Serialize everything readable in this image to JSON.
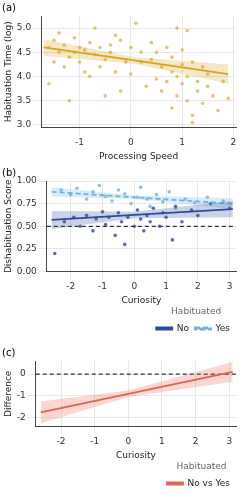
{
  "chart_data": [
    {
      "type": "scatter",
      "title": "(a)",
      "x_label": "Processing Speed",
      "y_label": "Habituation Time (log)",
      "xlim": [
        -1.75,
        2.05
      ],
      "xticks": [
        -1,
        0,
        1,
        2
      ],
      "ylim": [
        2.95,
        5.25
      ],
      "yticks": [
        {
          "value": 3,
          "label": "3.0"
        },
        {
          "value": 3.5,
          "label": "3.5"
        },
        {
          "value": 4,
          "label": "4.0"
        },
        {
          "value": 4.5,
          "label": "4.5"
        },
        {
          "value": 5,
          "label": "5.0"
        }
      ],
      "grid": true,
      "color": "#E8B04A",
      "marker": "circle",
      "points": [
        [
          -1.6,
          4.6
        ],
        [
          -1.5,
          4.3
        ],
        [
          -1.5,
          4.75
        ],
        [
          -1.4,
          4.5
        ],
        [
          -1.4,
          4.9
        ],
        [
          -1.3,
          4.2
        ],
        [
          -1.3,
          4.65
        ],
        [
          -1.2,
          4.4
        ],
        [
          -1.2,
          3.5
        ],
        [
          -1.1,
          4.8
        ],
        [
          -1.1,
          4.5
        ],
        [
          -1.0,
          4.6
        ],
        [
          -1.0,
          4.3
        ],
        [
          -0.9,
          4.55
        ],
        [
          -0.9,
          4.1
        ],
        [
          -0.8,
          4.0
        ],
        [
          -0.8,
          4.7
        ],
        [
          -0.7,
          4.45
        ],
        [
          -0.7,
          5.0
        ],
        [
          -0.6,
          4.2
        ],
        [
          -0.6,
          4.6
        ],
        [
          -0.5,
          4.35
        ],
        [
          -0.5,
          3.6
        ],
        [
          -0.4,
          4.5
        ],
        [
          -0.4,
          4.65
        ],
        [
          -0.3,
          4.1
        ],
        [
          -0.2,
          4.75
        ],
        [
          -0.2,
          3.7
        ],
        [
          -0.1,
          4.3
        ],
        [
          0.0,
          4.05
        ],
        [
          0.0,
          4.6
        ],
        [
          0.1,
          5.1
        ],
        [
          0.2,
          4.5
        ],
        [
          0.2,
          4.3
        ],
        [
          0.3,
          3.8
        ],
        [
          0.4,
          4.35
        ],
        [
          0.4,
          4.7
        ],
        [
          0.5,
          3.95
        ],
        [
          0.5,
          4.5
        ],
        [
          0.6,
          3.7
        ],
        [
          0.6,
          4.2
        ],
        [
          0.7,
          4.6
        ],
        [
          0.7,
          3.9
        ],
        [
          0.8,
          4.1
        ],
        [
          0.8,
          3.35
        ],
        [
          0.8,
          4.4
        ],
        [
          0.9,
          4.0
        ],
        [
          0.9,
          3.6
        ],
        [
          1.0,
          4.25
        ],
        [
          1.0,
          3.85
        ],
        [
          1.0,
          4.55
        ],
        [
          1.1,
          3.5
        ],
        [
          1.1,
          4.0
        ],
        [
          1.2,
          4.3
        ],
        [
          1.2,
          3.2
        ],
        [
          1.3,
          3.9
        ],
        [
          1.3,
          3.7
        ],
        [
          1.4,
          4.2
        ],
        [
          1.4,
          3.45
        ],
        [
          1.5,
          3.8
        ],
        [
          1.5,
          4.05
        ],
        [
          1.6,
          3.6
        ],
        [
          1.7,
          3.3
        ],
        [
          1.8,
          3.9
        ],
        [
          1.9,
          3.55
        ],
        [
          0.9,
          5.0
        ],
        [
          1.1,
          4.95
        ],
        [
          -1.6,
          3.85
        ],
        [
          -0.3,
          4.85
        ],
        [
          1.2,
          3.05
        ]
      ],
      "fit": {
        "color": "#D9A21B",
        "x": [
          -1.7,
          0.1,
          1.9
        ],
        "values": [
          4.6,
          4.33,
          4.05
        ],
        "lower": [
          4.43,
          4.26,
          3.85
        ],
        "upper": [
          4.77,
          4.4,
          4.25
        ]
      }
    },
    {
      "type": "scatter",
      "title": "(b)",
      "x_label": "Curiosity",
      "y_label": "Dishabituation Score",
      "xlim": [
        -2.75,
        3.2
      ],
      "xticks": [
        -2,
        -1,
        0,
        1,
        2,
        3
      ],
      "ylim": [
        0,
        1.0
      ],
      "yticks": [
        {
          "value": 0,
          "label": "0.00"
        },
        {
          "value": 0.25,
          "label": "0.25"
        },
        {
          "value": 0.5,
          "label": "0.50"
        },
        {
          "value": 0.75,
          "label": "0.75"
        },
        {
          "value": 1,
          "label": "1.00"
        }
      ],
      "grid": true,
      "legend": "bottom",
      "legend_title": "Habituated",
      "reference_line": 0.5,
      "series": [
        {
          "name": "No",
          "color": "#2B4C9B",
          "line_style": "solid",
          "marker": "circle",
          "points": [
            [
              -2.5,
              0.2
            ],
            [
              -2.2,
              0.55
            ],
            [
              -1.9,
              0.6
            ],
            [
              -1.7,
              0.5
            ],
            [
              -1.5,
              0.62
            ],
            [
              -1.3,
              0.45
            ],
            [
              -1.2,
              0.58
            ],
            [
              -1.0,
              0.66
            ],
            [
              -0.9,
              0.52
            ],
            [
              -0.8,
              0.6
            ],
            [
              -0.6,
              0.4
            ],
            [
              -0.5,
              0.65
            ],
            [
              -0.4,
              0.55
            ],
            [
              -0.3,
              0.3
            ],
            [
              -0.2,
              0.6
            ],
            [
              0.0,
              0.5
            ],
            [
              0.1,
              0.68
            ],
            [
              0.2,
              0.58
            ],
            [
              0.3,
              0.45
            ],
            [
              0.4,
              0.62
            ],
            [
              0.5,
              0.55
            ],
            [
              0.6,
              0.7
            ],
            [
              0.8,
              0.5
            ],
            [
              0.9,
              0.65
            ],
            [
              1.0,
              0.6
            ],
            [
              1.2,
              0.35
            ],
            [
              1.3,
              0.72
            ],
            [
              1.5,
              0.55
            ],
            [
              1.8,
              0.68
            ],
            [
              2.0,
              0.62
            ],
            [
              2.4,
              0.75
            ],
            [
              3.0,
              0.7
            ]
          ],
          "fit": {
            "x": [
              -2.6,
              0,
              3.1
            ],
            "values": [
              0.57,
              0.625,
              0.69
            ],
            "lower": [
              0.47,
              0.59,
              0.6
            ],
            "upper": [
              0.67,
              0.66,
              0.78
            ]
          }
        },
        {
          "name": "Yes",
          "color": "#6FB3E0",
          "line_style": "dashed",
          "marker": "circle",
          "points": [
            [
              -2.3,
              0.9
            ],
            [
              -2.0,
              0.85
            ],
            [
              -1.8,
              0.92
            ],
            [
              -1.5,
              0.8
            ],
            [
              -1.3,
              0.88
            ],
            [
              -1.1,
              0.95
            ],
            [
              -0.9,
              0.83
            ],
            [
              -0.7,
              0.78
            ],
            [
              -0.5,
              0.9
            ],
            [
              -0.3,
              0.86
            ],
            [
              -0.1,
              0.75
            ],
            [
              0.1,
              0.82
            ],
            [
              0.2,
              0.93
            ],
            [
              0.4,
              0.8
            ],
            [
              0.5,
              0.72
            ],
            [
              0.7,
              0.85
            ],
            [
              0.9,
              0.77
            ],
            [
              1.1,
              0.88
            ],
            [
              1.3,
              0.7
            ],
            [
              1.6,
              0.8
            ],
            [
              1.9,
              0.76
            ],
            [
              2.3,
              0.82
            ],
            [
              2.8,
              0.78
            ]
          ],
          "fit": {
            "x": [
              -2.6,
              0,
              3.1
            ],
            "values": [
              0.88,
              0.82,
              0.75
            ],
            "lower": [
              0.83,
              0.8,
              0.69
            ],
            "upper": [
              0.93,
              0.84,
              0.81
            ]
          }
        }
      ]
    },
    {
      "type": "line",
      "title": "(c)",
      "x_label": "Curiosity",
      "y_label": "Difference",
      "xlim": [
        -2.75,
        3.2
      ],
      "xticks": [
        -2,
        -1,
        0,
        1,
        2,
        3
      ],
      "ylim": [
        -2.4,
        0.6
      ],
      "yticks": [
        -2,
        -1,
        0
      ],
      "grid": true,
      "legend": "bottom",
      "legend_title": "Habituated",
      "reference_line": 0,
      "series": [
        {
          "name": "No vs Yes",
          "color": "#E8604C",
          "line_style": "solid",
          "fit": {
            "x": [
              -2.6,
              0,
              3.1
            ],
            "values": [
              -1.75,
              -0.9,
              0.1
            ],
            "lower": [
              -2.25,
              -1.05,
              -0.35
            ],
            "upper": [
              -1.25,
              -0.75,
              0.55
            ]
          }
        }
      ]
    }
  ]
}
